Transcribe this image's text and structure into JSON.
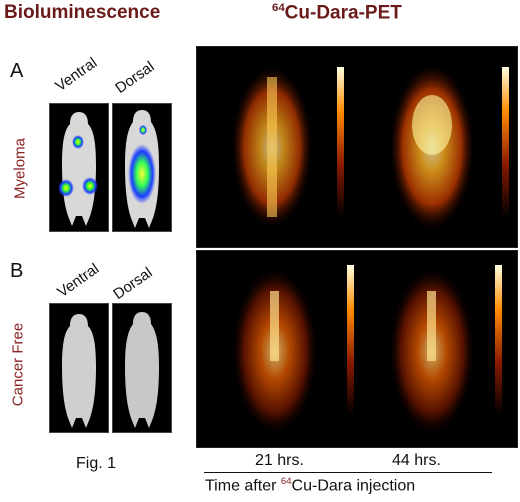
{
  "headings": {
    "bioluminescence": "Bioluminescence",
    "pet_iso": "64",
    "pet_rest": "Cu-Dara-PET"
  },
  "panels": [
    {
      "letter": "A",
      "row_label": "Myeloma"
    },
    {
      "letter": "B",
      "row_label": "Cancer Free"
    }
  ],
  "views": {
    "ventral": "Ventral",
    "dorsal": "Dorsal"
  },
  "time_points": {
    "t1": "21 hrs.",
    "t2": "44 hrs."
  },
  "axis": {
    "prefix": "Time after ",
    "iso": "64",
    "suffix": "Cu-Dara injection"
  },
  "figure_caption": "Fig. 1",
  "colors": {
    "heading": "#6b1a1a",
    "row_label": "#8a1f1f"
  }
}
